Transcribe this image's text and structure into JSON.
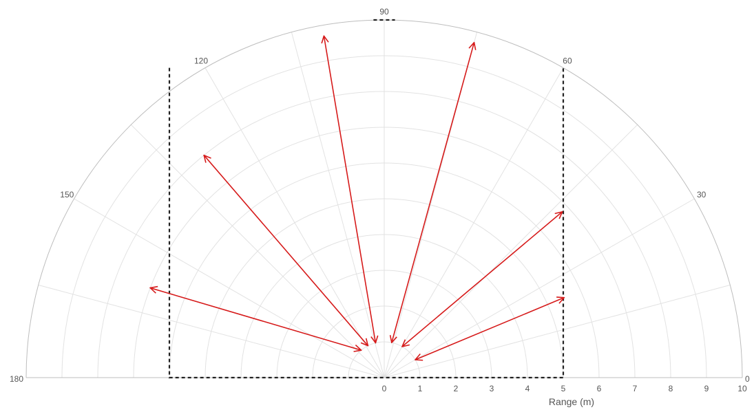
{
  "chart_data": {
    "type": "polar",
    "title": "",
    "xlabel": "Range (m)",
    "r_range": [
      0,
      10
    ],
    "r_ticks": [
      0,
      1,
      2,
      3,
      4,
      5,
      6,
      7,
      8,
      9,
      10
    ],
    "theta_range": [
      0,
      180
    ],
    "theta_labels": [
      0,
      30,
      60,
      90,
      120,
      150,
      180
    ],
    "theta_grid_step": 15,
    "grid": true,
    "colors": {
      "beam": "#d61a1a",
      "region": "#222222",
      "grid": "#e2e2e2"
    },
    "region_rectangle": {
      "style": "dashed",
      "x_range": [
        -6,
        5
      ],
      "y_range": [
        0,
        8.66
      ],
      "top_segment_x_range": [
        -0.3,
        0.3
      ]
    },
    "beams": [
      {
        "start_r": 1.0,
        "start_theta": 130,
        "end_r": 7.0,
        "end_theta": 159
      },
      {
        "start_r": 1.0,
        "start_theta": 117,
        "end_r": 8.0,
        "end_theta": 129
      },
      {
        "start_r": 1.0,
        "start_theta": 104,
        "end_r": 9.7,
        "end_theta": 100
      },
      {
        "start_r": 1.0,
        "start_theta": 78,
        "end_r": 9.7,
        "end_theta": 75
      },
      {
        "start_r": 1.0,
        "start_theta": 60,
        "end_r": 6.8,
        "end_theta": 43
      },
      {
        "start_r": 1.0,
        "start_theta": 30,
        "end_r": 5.5,
        "end_theta": 24
      }
    ]
  }
}
